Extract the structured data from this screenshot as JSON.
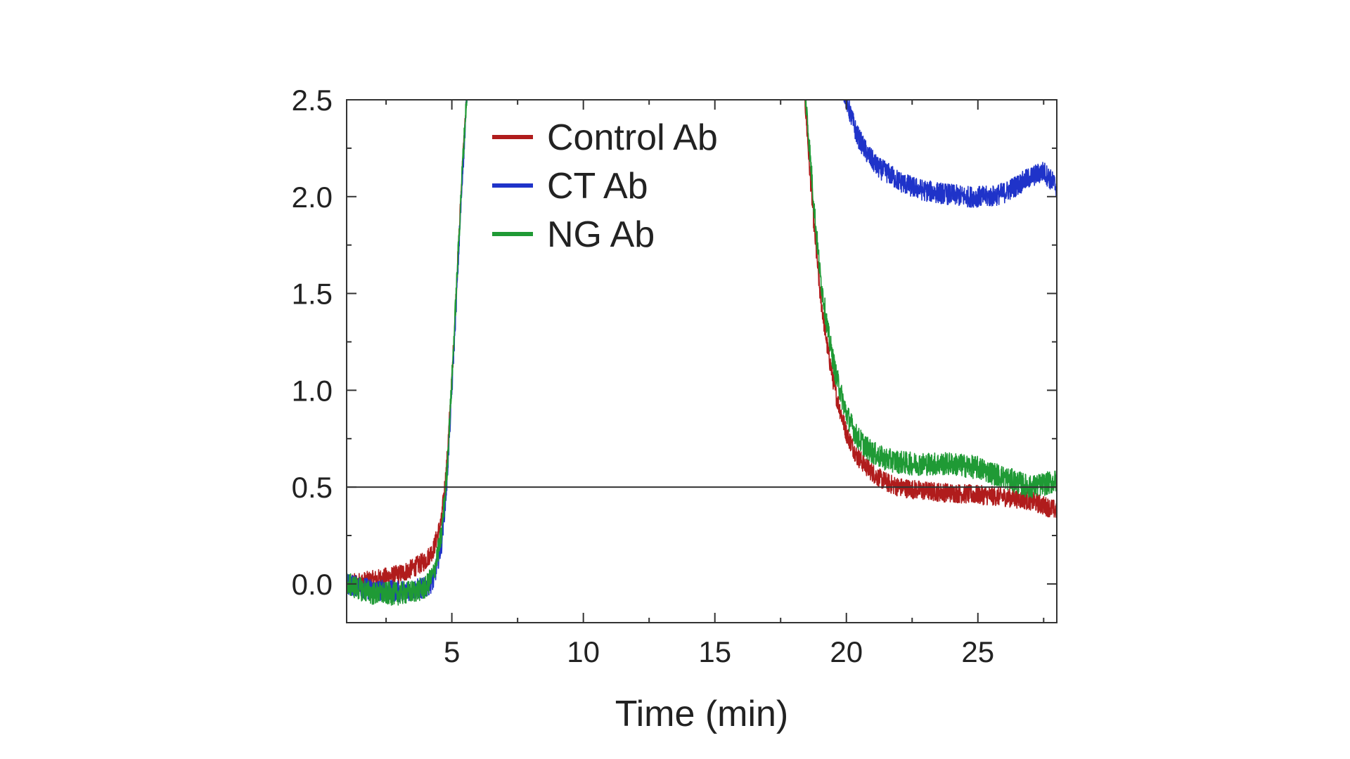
{
  "chart_data": {
    "type": "line",
    "title": "",
    "xlabel": "Time (min)",
    "ylabel": "",
    "xlim": [
      1,
      28
    ],
    "ylim": [
      -0.2,
      2.5
    ],
    "xticks": [
      5,
      10,
      15,
      20,
      25
    ],
    "xtick_labels": [
      "5",
      "10",
      "15",
      "20",
      "25"
    ],
    "yticks": [
      0.0,
      0.5,
      1.0,
      1.5,
      2.0,
      2.5
    ],
    "ytick_labels": [
      "0.0",
      "0.5",
      "1.0",
      "1.5",
      "2.0",
      "2.5"
    ],
    "reference_line": {
      "y": 0.5
    },
    "legend": {
      "position": "top-left"
    },
    "series": [
      {
        "name": "Control Ab",
        "color": "#b01c1c",
        "x": [
          1.0,
          2.0,
          3.0,
          3.5,
          4.0,
          4.3,
          4.6,
          4.8,
          5.0,
          5.2,
          5.4,
          5.6,
          18.4,
          18.6,
          18.8,
          19.0,
          19.3,
          19.6,
          20.0,
          20.4,
          20.8,
          21.2,
          21.6,
          22.0,
          22.5,
          23.0,
          24.0,
          25.0,
          26.0,
          27.0,
          28.0
        ],
        "y": [
          0.0,
          0.02,
          0.05,
          0.08,
          0.12,
          0.18,
          0.32,
          0.6,
          1.05,
          1.6,
          2.15,
          2.6,
          2.55,
          2.15,
          1.8,
          1.5,
          1.2,
          0.98,
          0.78,
          0.66,
          0.6,
          0.55,
          0.52,
          0.5,
          0.49,
          0.48,
          0.47,
          0.46,
          0.45,
          0.43,
          0.38
        ]
      },
      {
        "name": "CT Ab",
        "color": "#1f33c9",
        "x": [
          1.0,
          2.0,
          3.0,
          3.5,
          4.0,
          4.3,
          4.6,
          4.8,
          5.0,
          5.2,
          5.4,
          5.6,
          19.9,
          20.1,
          20.4,
          20.8,
          21.2,
          21.6,
          22.0,
          22.5,
          23.0,
          23.5,
          24.0,
          24.5,
          25.0,
          25.5,
          26.0,
          26.5,
          27.0,
          27.5,
          28.0
        ],
        "y": [
          0.0,
          -0.03,
          -0.04,
          -0.03,
          -0.02,
          0.02,
          0.2,
          0.5,
          1.0,
          1.55,
          2.1,
          2.6,
          2.55,
          2.45,
          2.32,
          2.22,
          2.15,
          2.12,
          2.08,
          2.05,
          2.03,
          2.02,
          2.01,
          2.0,
          2.0,
          2.0,
          2.02,
          2.06,
          2.1,
          2.13,
          2.05
        ]
      },
      {
        "name": "NG Ab",
        "color": "#1f9a35",
        "x": [
          1.0,
          2.0,
          3.0,
          3.5,
          4.0,
          4.3,
          4.6,
          4.8,
          5.0,
          5.2,
          5.4,
          5.6,
          18.4,
          18.6,
          18.8,
          19.0,
          19.3,
          19.6,
          20.0,
          20.4,
          20.8,
          21.2,
          21.6,
          22.0,
          22.5,
          23.0,
          24.0,
          25.0,
          26.0,
          27.0,
          28.0
        ],
        "y": [
          0.0,
          -0.05,
          -0.05,
          -0.04,
          -0.02,
          0.05,
          0.25,
          0.55,
          1.05,
          1.6,
          2.15,
          2.6,
          2.6,
          2.25,
          1.9,
          1.6,
          1.3,
          1.08,
          0.88,
          0.76,
          0.7,
          0.66,
          0.64,
          0.63,
          0.62,
          0.62,
          0.62,
          0.6,
          0.55,
          0.5,
          0.53
        ]
      }
    ]
  }
}
